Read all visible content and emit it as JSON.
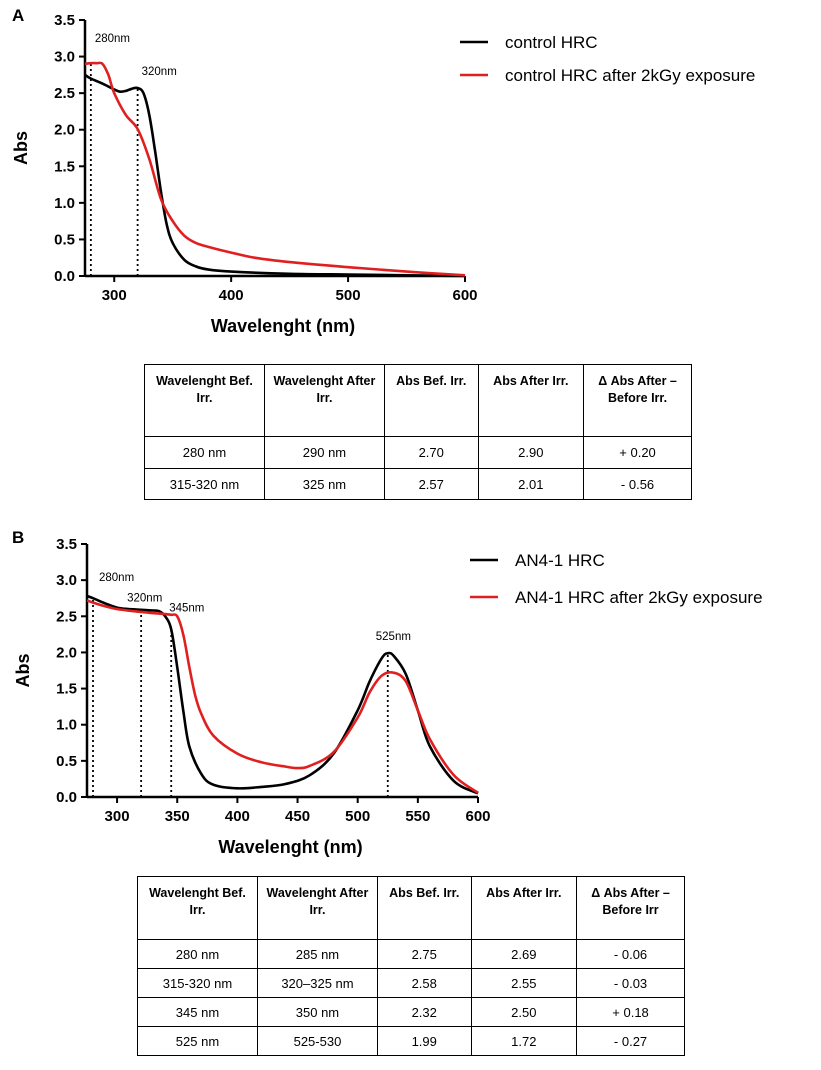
{
  "chart_data": [
    {
      "panel": "A",
      "type": "line",
      "xlabel": "Wavelenght (nm)",
      "ylabel": "Abs",
      "xlim": [
        275,
        600
      ],
      "ylim": [
        0,
        3.5
      ],
      "xticks": [
        300,
        400,
        500,
        600
      ],
      "yticks": [
        "0.0",
        "0.5",
        "1.0",
        "1.5",
        "2.0",
        "2.5",
        "3.0",
        "3.5"
      ],
      "legend_position": "top-right",
      "series": [
        {
          "name": "control HRC",
          "color": "#000000",
          "x": [
            275,
            280,
            290,
            300,
            305,
            310,
            315,
            320,
            325,
            330,
            335,
            340,
            345,
            350,
            360,
            370,
            380,
            400,
            450,
            500,
            550,
            600
          ],
          "y": [
            2.75,
            2.7,
            2.63,
            2.55,
            2.52,
            2.53,
            2.56,
            2.57,
            2.5,
            2.2,
            1.7,
            1.15,
            0.7,
            0.45,
            0.22,
            0.13,
            0.09,
            0.06,
            0.03,
            0.02,
            0.01,
            0.0
          ]
        },
        {
          "name": "control HRC after 2kGy exposure",
          "color": "#e02020",
          "x": [
            275,
            280,
            285,
            290,
            295,
            300,
            310,
            320,
            330,
            340,
            350,
            360,
            370,
            380,
            400,
            420,
            450,
            500,
            550,
            600
          ],
          "y": [
            2.9,
            2.91,
            2.91,
            2.9,
            2.75,
            2.5,
            2.2,
            2.01,
            1.6,
            1.05,
            0.75,
            0.55,
            0.45,
            0.4,
            0.32,
            0.25,
            0.19,
            0.12,
            0.06,
            0.01
          ]
        }
      ],
      "annotations": [
        {
          "text": "280nm",
          "x": 280,
          "y": 2.9
        },
        {
          "text": "320nm",
          "x": 320,
          "y": 2.57
        }
      ],
      "table": {
        "headers": [
          "Wavelenght Bef. Irr.",
          "Wavelenght After Irr.",
          "Abs Bef. Irr.",
          "Abs After Irr.",
          "Δ Abs After – Before Irr."
        ],
        "rows": [
          [
            "280 nm",
            "290 nm",
            "2.70",
            "2.90",
            "+ 0.20"
          ],
          [
            "315-320 nm",
            "325 nm",
            "2.57",
            "2.01",
            "- 0.56"
          ]
        ]
      }
    },
    {
      "panel": "B",
      "type": "line",
      "xlabel": "Wavelenght (nm)",
      "ylabel": "Abs",
      "xlim": [
        275,
        600
      ],
      "ylim": [
        0,
        3.5
      ],
      "xticks": [
        300,
        350,
        400,
        450,
        500,
        550,
        600
      ],
      "yticks": [
        "0.0",
        "0.5",
        "1.0",
        "1.5",
        "2.0",
        "2.5",
        "3.0",
        "3.5"
      ],
      "legend_position": "top-right",
      "series": [
        {
          "name": "AN4-1 HRC",
          "color": "#000000",
          "x": [
            275,
            280,
            290,
            300,
            310,
            320,
            330,
            335,
            340,
            345,
            350,
            355,
            360,
            370,
            380,
            400,
            420,
            440,
            460,
            480,
            500,
            510,
            520,
            525,
            530,
            540,
            550,
            560,
            580,
            600
          ],
          "y": [
            2.78,
            2.75,
            2.68,
            2.62,
            2.6,
            2.59,
            2.58,
            2.57,
            2.5,
            2.32,
            1.8,
            1.2,
            0.7,
            0.32,
            0.17,
            0.12,
            0.14,
            0.18,
            0.3,
            0.6,
            1.2,
            1.6,
            1.92,
            1.99,
            1.95,
            1.7,
            1.2,
            0.7,
            0.22,
            0.05
          ]
        },
        {
          "name": "AN4-1 HRC after 2kGy exposure",
          "color": "#e02020",
          "x": [
            275,
            280,
            290,
            300,
            320,
            340,
            345,
            350,
            355,
            360,
            365,
            370,
            380,
            400,
            420,
            440,
            450,
            460,
            480,
            500,
            510,
            520,
            530,
            540,
            550,
            560,
            580,
            600
          ],
          "y": [
            2.72,
            2.69,
            2.64,
            2.6,
            2.56,
            2.53,
            2.52,
            2.5,
            2.25,
            1.8,
            1.4,
            1.15,
            0.85,
            0.6,
            0.48,
            0.42,
            0.4,
            0.43,
            0.62,
            1.1,
            1.45,
            1.68,
            1.72,
            1.6,
            1.2,
            0.8,
            0.3,
            0.06
          ]
        }
      ],
      "annotations": [
        {
          "text": "280nm",
          "x": 280,
          "y": 2.75
        },
        {
          "text": "320nm",
          "x": 320,
          "y": 2.58
        },
        {
          "text": "345nm",
          "x": 345,
          "y": 2.32
        },
        {
          "text": "525nm",
          "x": 525,
          "y": 1.99
        }
      ],
      "table": {
        "headers": [
          "Wavelenght Bef. Irr.",
          "Wavelenght After Irr.",
          "Abs Bef. Irr.",
          "Abs After Irr.",
          "Δ Abs After – Before Irr"
        ],
        "rows": [
          [
            "280 nm",
            "285 nm",
            "2.75",
            "2.69",
            "- 0.06"
          ],
          [
            "315-320 nm",
            "320–325 nm",
            "2.58",
            "2.55",
            "- 0.03"
          ],
          [
            "345 nm",
            "350 nm",
            "2.32",
            "2.50",
            "+ 0.18"
          ],
          [
            "525 nm",
            "525-530",
            "1.99",
            "1.72",
            "- 0.27"
          ]
        ]
      }
    }
  ]
}
